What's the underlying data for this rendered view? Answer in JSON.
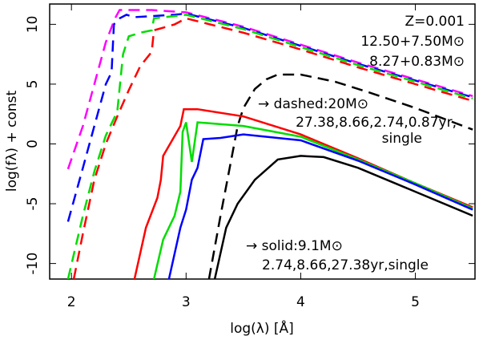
{
  "chart_data": {
    "type": "line",
    "xlabel": "log(λ) [Å]",
    "ylabel": "log(fλ)  + const",
    "annotations": [
      "Z=0.001",
      "12.50+7.50M⊙",
      "8.27+0.83M⊙",
      "→ dashed:20M⊙",
      "27.38,8.66,2.74,0.87yr,",
      "single",
      "→ solid:9.1M⊙",
      "2.74,8.66,27.38yr,single"
    ],
    "xlim": [
      1.81,
      5.52
    ],
    "ylim": [
      -11.3,
      11.7
    ],
    "xticks": [
      2,
      3,
      4,
      5
    ],
    "yticks": [
      -10,
      -5,
      0,
      5,
      10
    ],
    "grid": false,
    "series": [
      {
        "color": "#ff00ff",
        "dashed": true,
        "x": [
          1.97,
          2.1,
          2.2,
          2.3,
          2.38,
          2.42,
          2.7,
          3.0,
          3.5,
          4.0,
          4.5,
          5.0,
          5.5
        ],
        "values": [
          -2.1,
          1.5,
          5,
          8.5,
          10.5,
          11.2,
          11.2,
          11.0,
          9.8,
          8.3,
          6.8,
          5.4,
          4.0
        ]
      },
      {
        "color": "#0000ff",
        "dashed": true,
        "x": [
          1.97,
          2.1,
          2.2,
          2.3,
          2.35,
          2.37,
          2.42,
          2.48,
          2.55,
          2.9,
          3.0,
          3.5,
          4.0,
          4.5,
          5.0,
          5.5
        ],
        "values": [
          -6.5,
          -2,
          1.5,
          5,
          6,
          10,
          10.5,
          10.8,
          10.6,
          10.8,
          10.9,
          9.7,
          8.2,
          6.7,
          5.3,
          3.9
        ]
      },
      {
        "color": "#00dd00",
        "dashed": true,
        "x": [
          1.97,
          2.1,
          2.2,
          2.3,
          2.4,
          2.45,
          2.5,
          2.6,
          2.7,
          2.72,
          3.0,
          3.5,
          4.0,
          4.5,
          5.0,
          5.5
        ],
        "values": [
          -11.3,
          -6,
          -2.3,
          0.7,
          2.7,
          7.5,
          9,
          9.3,
          9.5,
          10.5,
          10.8,
          9.6,
          8.1,
          6.6,
          5.2,
          3.8
        ]
      },
      {
        "color": "#ff0000",
        "dashed": true,
        "x": [
          2.02,
          2.1,
          2.2,
          2.3,
          2.4,
          2.5,
          2.6,
          2.7,
          2.72,
          2.9,
          3.0,
          3.5,
          4.0,
          4.5,
          5.0,
          5.5
        ],
        "values": [
          -11.3,
          -7.5,
          -3,
          0,
          2.3,
          4.5,
          6.5,
          7.7,
          9.5,
          10.0,
          10.5,
          9.3,
          7.9,
          6.4,
          5.0,
          3.6
        ]
      },
      {
        "color": "#000000",
        "dashed": true,
        "x": [
          3.2,
          3.3,
          3.4,
          3.45,
          3.5,
          3.6,
          3.7,
          3.8,
          4.0,
          4.3,
          4.6,
          5.0,
          5.5
        ],
        "values": [
          -11.3,
          -6,
          -1,
          1.5,
          3,
          4.6,
          5.4,
          5.8,
          5.8,
          5.2,
          4.3,
          3.0,
          1.2
        ]
      },
      {
        "color": "#ff0000",
        "dashed": false,
        "x": [
          2.55,
          2.65,
          2.75,
          2.78,
          2.8,
          2.95,
          2.98,
          3.1,
          3.5,
          4.0,
          4.5,
          5.0,
          5.5
        ],
        "values": [
          -11.3,
          -7,
          -4.5,
          -3,
          -1,
          1.5,
          2.9,
          2.9,
          2.3,
          0.8,
          -1.2,
          -3.3,
          -5.3
        ]
      },
      {
        "color": "#00dd00",
        "dashed": false,
        "x": [
          2.72,
          2.8,
          2.9,
          2.95,
          2.97,
          3.0,
          3.05,
          3.1,
          3.5,
          4.0,
          4.5,
          5.0,
          5.5
        ],
        "values": [
          -11.3,
          -8,
          -6,
          -4,
          1,
          1.8,
          -1.5,
          1.8,
          1.5,
          0.6,
          -1.3,
          -3.3,
          -5.4
        ]
      },
      {
        "color": "#0000ff",
        "dashed": false,
        "x": [
          2.85,
          2.95,
          3.0,
          3.05,
          3.1,
          3.15,
          3.3,
          3.5,
          4.0,
          4.5,
          5.0,
          5.5
        ],
        "values": [
          -11.3,
          -7,
          -5.5,
          -3,
          -2,
          0.4,
          0.5,
          0.8,
          0.3,
          -1.4,
          -3.4,
          -5.5
        ]
      },
      {
        "color": "#000000",
        "dashed": false,
        "x": [
          3.25,
          3.35,
          3.45,
          3.6,
          3.8,
          4.0,
          4.2,
          4.5,
          5.0,
          5.5
        ],
        "values": [
          -11.3,
          -7,
          -5,
          -3,
          -1.3,
          -1,
          -1.1,
          -2,
          -4,
          -6
        ]
      }
    ]
  }
}
